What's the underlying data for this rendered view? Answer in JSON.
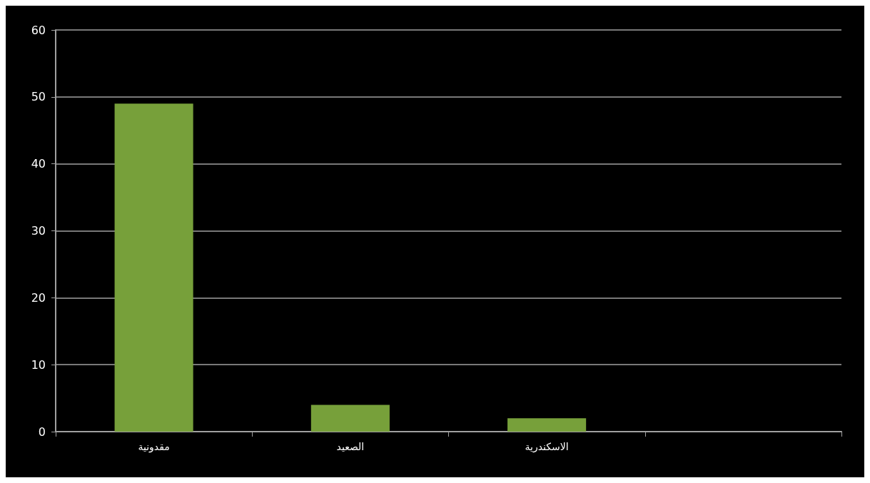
{
  "chart_data": {
    "type": "bar",
    "categories": [
      "مقدونية",
      "الصعيد",
      "الاسكندرية",
      null
    ],
    "values": [
      49,
      4,
      2,
      null
    ],
    "color": "#77a03a",
    "ylim": [
      0,
      60
    ],
    "yticks": [
      0,
      10,
      20,
      30,
      40,
      50,
      60
    ],
    "grid": "y"
  }
}
